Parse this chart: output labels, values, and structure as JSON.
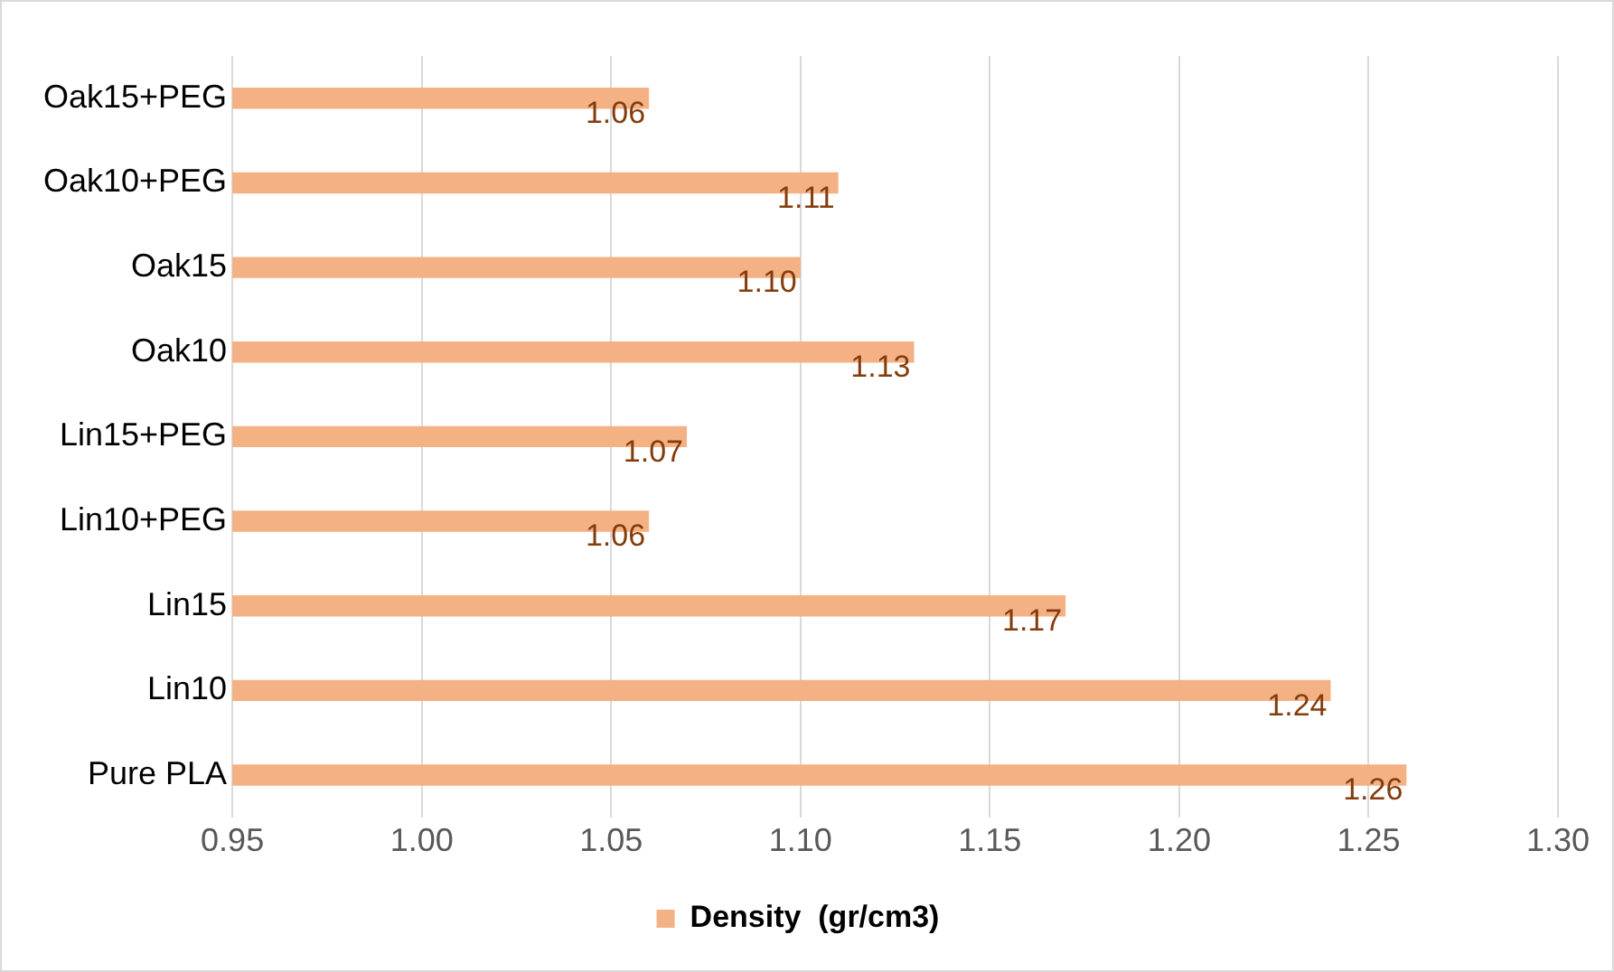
{
  "chart_data": {
    "type": "bar",
    "orientation": "horizontal",
    "categories": [
      "Oak15+PEG",
      "Oak10+PEG",
      "Oak15",
      "Oak10",
      "Lin15+PEG",
      "Lin10+PEG",
      "Lin15",
      "Lin10",
      "Pure PLA"
    ],
    "series": [
      {
        "name": "Density  (gr/cm3)",
        "color": "#f4b183",
        "values": [
          1.06,
          1.11,
          1.1,
          1.13,
          1.07,
          1.06,
          1.17,
          1.24,
          1.26
        ],
        "value_labels": [
          "1.06",
          "1.11",
          "1.10",
          "1.13",
          "1.07",
          "1.06",
          "1.17",
          "1.24",
          "1.26"
        ]
      }
    ],
    "xlim": [
      0.95,
      1.3
    ],
    "xticks": [
      0.95,
      {
        "value": 1,
        "label": "1.00"
      },
      1.05,
      {
        "value": 1.1,
        "label": "1.10"
      },
      1.15,
      {
        "value": 1.2,
        "label": "1.20"
      },
      1.25,
      {
        "value": 1.3,
        "label": "1.30"
      }
    ],
    "grid": "x",
    "legend": "bottom"
  }
}
